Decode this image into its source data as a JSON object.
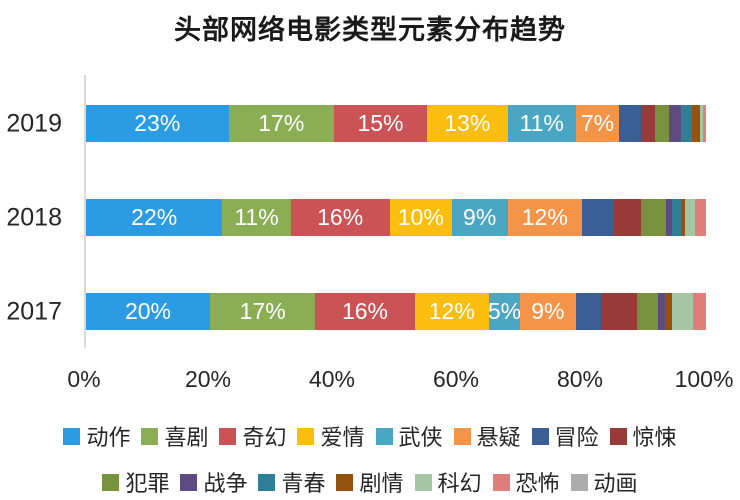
{
  "title": "头部网络电影类型元素分布趋势",
  "colors": {
    "background": "#ffffff",
    "axis_line": "#d9d9d9",
    "text": "#262626",
    "segment_label_text": "#ffffff"
  },
  "chart_data": {
    "type": "bar",
    "orientation": "horizontal",
    "stacked": true,
    "value_unit": "%",
    "grid": false,
    "legend_position": "bottom",
    "legend_row_split": 8,
    "categories": [
      "2019",
      "2018",
      "2017"
    ],
    "xticks": [
      "0%",
      "20%",
      "40%",
      "60%",
      "80%",
      "100%"
    ],
    "xlim": [
      0,
      100
    ],
    "series": [
      {
        "name": "动作",
        "color": "#2B9CE3",
        "labeled": true,
        "values": [
          23,
          22,
          20
        ]
      },
      {
        "name": "喜剧",
        "color": "#8BAE55",
        "labeled": true,
        "values": [
          17,
          11,
          17
        ]
      },
      {
        "name": "奇幻",
        "color": "#CC5355",
        "labeled": true,
        "values": [
          15,
          16,
          16
        ]
      },
      {
        "name": "爱情",
        "color": "#FBBE0F",
        "labeled": true,
        "values": [
          13,
          10,
          12
        ]
      },
      {
        "name": "武侠",
        "color": "#4BA6C3",
        "labeled": true,
        "values": [
          11,
          9,
          5
        ]
      },
      {
        "name": "悬疑",
        "color": "#F49449",
        "labeled": true,
        "values": [
          7,
          12,
          9
        ]
      },
      {
        "name": "冒险",
        "color": "#3A5F95",
        "labeled": false,
        "values": [
          3.5,
          5.2,
          4.1
        ]
      },
      {
        "name": "惊悚",
        "color": "#973B39",
        "labeled": false,
        "values": [
          2.3,
          4.3,
          5.8
        ]
      },
      {
        "name": "犯罪",
        "color": "#79923E",
        "labeled": false,
        "values": [
          2.3,
          4.0,
          3.4
        ]
      },
      {
        "name": "战争",
        "color": "#5D4B82",
        "labeled": false,
        "values": [
          1.9,
          1.0,
          1.1
        ]
      },
      {
        "name": "青春",
        "color": "#2F7F96",
        "labeled": false,
        "values": [
          1.8,
          1.5,
          0
        ]
      },
      {
        "name": "剧情",
        "color": "#95520F",
        "labeled": false,
        "values": [
          1.2,
          0.7,
          1.1
        ]
      },
      {
        "name": "科幻",
        "color": "#A4C6A5",
        "labeled": false,
        "values": [
          0.5,
          1.6,
          3.4
        ]
      },
      {
        "name": "恐怖",
        "color": "#DF7E7B",
        "labeled": false,
        "values": [
          0.5,
          1.7,
          2.1
        ]
      },
      {
        "name": "动画",
        "color": "#ACACAC",
        "labeled": false,
        "values": [
          0,
          0,
          0
        ]
      }
    ],
    "segment_labels": {
      "2019": [
        "23%",
        "17%",
        "15%",
        "13%",
        "11%",
        "7%"
      ],
      "2018": [
        "22%",
        "11%",
        "16%",
        "10%",
        "9%",
        "12%"
      ],
      "2017": [
        "20%",
        "17%",
        "16%",
        "12%",
        "5%",
        "9%"
      ]
    }
  }
}
